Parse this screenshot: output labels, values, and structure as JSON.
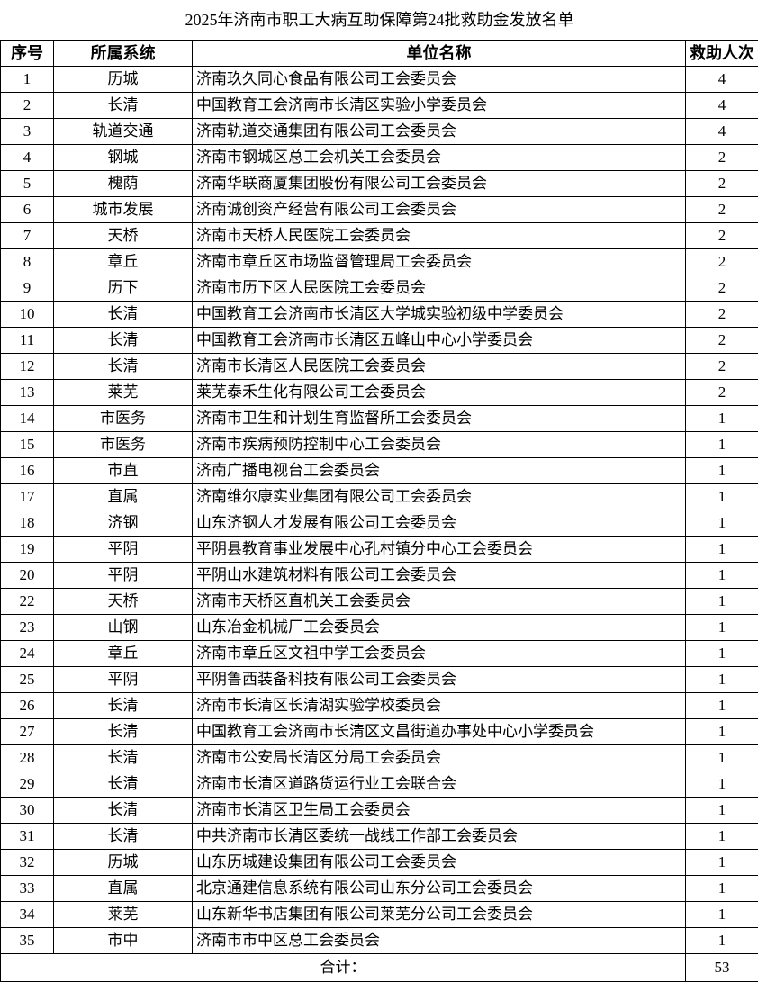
{
  "title": "2025年济南市职工大病互助保障第24批救助金发放名单",
  "headers": {
    "seq": "序号",
    "system": "所属系统",
    "unit": "单位名称",
    "count": "救助人次"
  },
  "rows": [
    [
      "1",
      "历城",
      "济南玖久同心食品有限公司工会委员会",
      "4"
    ],
    [
      "2",
      "长清",
      "中国教育工会济南市长清区实验小学委员会",
      "4"
    ],
    [
      "3",
      "轨道交通",
      "济南轨道交通集团有限公司工会委员会",
      "4"
    ],
    [
      "4",
      "钢城",
      "济南市钢城区总工会机关工会委员会",
      "2"
    ],
    [
      "5",
      "槐荫",
      "济南华联商厦集团股份有限公司工会委员会",
      "2"
    ],
    [
      "6",
      "城市发展",
      "济南诚创资产经营有限公司工会委员会",
      "2"
    ],
    [
      "7",
      "天桥",
      "济南市天桥人民医院工会委员会",
      "2"
    ],
    [
      "8",
      "章丘",
      "济南市章丘区市场监督管理局工会委员会",
      "2"
    ],
    [
      "9",
      "历下",
      "济南市历下区人民医院工会委员会",
      "2"
    ],
    [
      "10",
      "长清",
      "中国教育工会济南市长清区大学城实验初级中学委员会",
      "2"
    ],
    [
      "11",
      "长清",
      "中国教育工会济南市长清区五峰山中心小学委员会",
      "2"
    ],
    [
      "12",
      "长清",
      "济南市长清区人民医院工会委员会",
      "2"
    ],
    [
      "13",
      "莱芜",
      "莱芜泰禾生化有限公司工会委员会",
      "2"
    ],
    [
      "14",
      "市医务",
      "济南市卫生和计划生育监督所工会委员会",
      "1"
    ],
    [
      "15",
      "市医务",
      "济南市疾病预防控制中心工会委员会",
      "1"
    ],
    [
      "16",
      "市直",
      "济南广播电视台工会委员会",
      "1"
    ],
    [
      "17",
      "直属",
      "济南维尔康实业集团有限公司工会委员会",
      "1"
    ],
    [
      "18",
      "济钢",
      "山东济钢人才发展有限公司工会委员会",
      "1"
    ],
    [
      "19",
      "平阴",
      "平阴县教育事业发展中心孔村镇分中心工会委员会",
      "1"
    ],
    [
      "20",
      "平阴",
      "平阴山水建筑材料有限公司工会委员会",
      "1"
    ],
    [
      "22",
      "天桥",
      "济南市天桥区直机关工会委员会",
      "1"
    ],
    [
      "23",
      "山钢",
      "山东冶金机械厂工会委员会",
      "1"
    ],
    [
      "24",
      "章丘",
      "济南市章丘区文祖中学工会委员会",
      "1"
    ],
    [
      "25",
      "平阴",
      "平阴鲁西装备科技有限公司工会委员会",
      "1"
    ],
    [
      "26",
      "长清",
      "济南市长清区长清湖实验学校委员会",
      "1"
    ],
    [
      "27",
      "长清",
      "中国教育工会济南市长清区文昌街道办事处中心小学委员会",
      "1"
    ],
    [
      "28",
      "长清",
      "济南市公安局长清区分局工会委员会",
      "1"
    ],
    [
      "29",
      "长清",
      "济南市长清区道路货运行业工会联合会",
      "1"
    ],
    [
      "30",
      "长清",
      "济南市长清区卫生局工会委员会",
      "1"
    ],
    [
      "31",
      "长清",
      "中共济南市长清区委统一战线工作部工会委员会",
      "1"
    ],
    [
      "32",
      "历城",
      "山东历城建设集团有限公司工会委员会",
      "1"
    ],
    [
      "33",
      "直属",
      "北京通建信息系统有限公司山东分公司工会委员会",
      "1"
    ],
    [
      "34",
      "莱芜",
      "山东新华书店集团有限公司莱芜分公司工会委员会",
      "1"
    ],
    [
      "35",
      "市中",
      "济南市市中区总工会委员会",
      "1"
    ]
  ],
  "total": {
    "label": "合计：",
    "value": "53"
  }
}
